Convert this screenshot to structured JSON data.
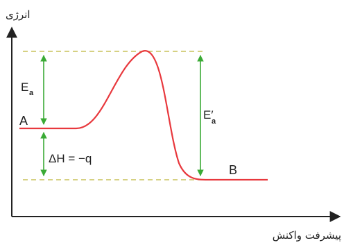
{
  "axes": {
    "y_label": "انرژی",
    "x_label": "پیشرفت واکنش"
  },
  "points": {
    "reactant": "A",
    "product": "B"
  },
  "annotations": {
    "activation_forward": "E",
    "activation_forward_sub": "a",
    "activation_reverse": "E′",
    "activation_reverse_sub": "a",
    "enthalpy": "ΔH = −q"
  },
  "colors": {
    "curve": "#e8383d",
    "arrows": "#3aaa35",
    "guides": "#c9c25a",
    "axes": "#222222"
  }
}
